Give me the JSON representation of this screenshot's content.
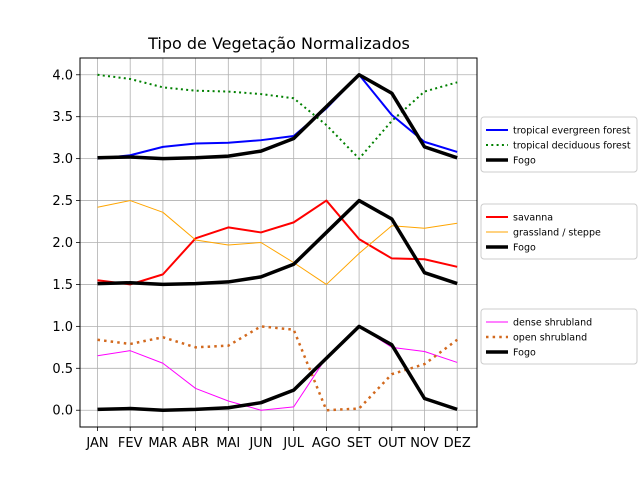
{
  "chart_data": {
    "type": "line",
    "title": "Tipo de Vegetação Normalizados",
    "xlabel": "",
    "ylabel": "",
    "categories": [
      "JAN",
      "FEV",
      "MAR",
      "ABR",
      "MAI",
      "JUN",
      "JUL",
      "AGO",
      "SET",
      "OUT",
      "NOV",
      "DEZ"
    ],
    "ylim": [
      -0.2,
      4.2
    ],
    "yticks": [
      "0.0",
      "0.5",
      "1.0",
      "1.5",
      "2.0",
      "2.5",
      "3.0",
      "3.5",
      "4.0"
    ],
    "grid": true,
    "legend_placement": "right",
    "series": [
      {
        "name": "tropical evergreen forest",
        "color": "#0000ff",
        "style": "solid",
        "width": 2,
        "values": [
          3.0,
          3.04,
          3.14,
          3.18,
          3.19,
          3.22,
          3.27,
          3.6,
          4.0,
          3.52,
          3.2,
          3.08
        ]
      },
      {
        "name": "tropical deciduous forest",
        "color": "#008000",
        "style": "dotted",
        "width": 2,
        "values": [
          4.0,
          3.95,
          3.85,
          3.81,
          3.8,
          3.77,
          3.72,
          3.4,
          3.0,
          3.45,
          3.8,
          3.91
        ]
      },
      {
        "name": "Fogo",
        "color": "#000000",
        "style": "solid",
        "width": 3.5,
        "values": [
          3.01,
          3.02,
          3.0,
          3.01,
          3.03,
          3.09,
          3.24,
          3.62,
          4.0,
          3.78,
          3.14,
          3.01
        ]
      },
      {
        "name": "savanna",
        "color": "#ff0000",
        "style": "solid",
        "width": 2,
        "values": [
          1.55,
          1.5,
          1.62,
          2.05,
          2.18,
          2.12,
          2.24,
          2.5,
          2.04,
          1.81,
          1.8,
          1.71
        ]
      },
      {
        "name": "grassland / steppe",
        "color": "#ffa500",
        "style": "solid",
        "width": 1,
        "values": [
          2.42,
          2.5,
          2.36,
          2.03,
          1.97,
          2.0,
          1.76,
          1.5,
          1.87,
          2.2,
          2.17,
          2.23
        ]
      },
      {
        "name": "Fogo",
        "color": "#000000",
        "style": "solid",
        "width": 3.5,
        "values": [
          1.51,
          1.52,
          1.5,
          1.51,
          1.53,
          1.59,
          1.74,
          2.12,
          2.5,
          2.28,
          1.64,
          1.51
        ]
      },
      {
        "name": "dense shrubland",
        "color": "#ff00ff",
        "style": "solid",
        "width": 1,
        "values": [
          0.65,
          0.71,
          0.56,
          0.26,
          0.11,
          0.0,
          0.04,
          0.63,
          1.0,
          0.75,
          0.7,
          0.57
        ]
      },
      {
        "name": "open shrubland",
        "color": "#d2691e",
        "style": "dotted",
        "width": 2.5,
        "values": [
          0.84,
          0.79,
          0.87,
          0.75,
          0.77,
          1.0,
          0.96,
          0.0,
          0.02,
          0.43,
          0.55,
          0.84
        ]
      },
      {
        "name": "Fogo",
        "color": "#000000",
        "style": "solid",
        "width": 3.5,
        "values": [
          0.01,
          0.02,
          0.0,
          0.01,
          0.03,
          0.09,
          0.24,
          0.62,
          1.0,
          0.78,
          0.14,
          0.01
        ]
      }
    ],
    "legends": [
      {
        "entries": [
          0,
          1,
          2
        ]
      },
      {
        "entries": [
          3,
          4,
          5
        ]
      },
      {
        "entries": [
          6,
          7,
          8
        ]
      }
    ]
  }
}
